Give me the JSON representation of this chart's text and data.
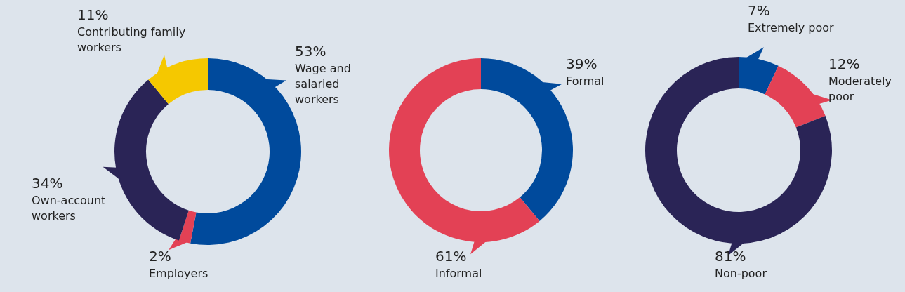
{
  "chart_data": [
    {
      "type": "donut",
      "categories": [
        "Wage and salaried workers",
        "Employers",
        "Own-account workers",
        "Contributing family workers"
      ],
      "values": [
        53,
        2,
        34,
        11
      ],
      "value_labels": [
        "53%",
        "2%",
        "34%",
        "11%"
      ],
      "colors": [
        "#004a9c",
        "#e34155",
        "#2a2456",
        "#f5c800"
      ]
    },
    {
      "type": "donut",
      "categories": [
        "Formal",
        "Informal"
      ],
      "values": [
        39,
        61
      ],
      "value_labels": [
        "39%",
        "61%"
      ],
      "colors": [
        "#004a9c",
        "#e34155"
      ]
    },
    {
      "type": "donut",
      "categories": [
        "Extremely poor",
        "Moderately poor",
        "Non-poor"
      ],
      "values": [
        7,
        12,
        81
      ],
      "value_labels": [
        "7%",
        "12%",
        "81%"
      ],
      "colors": [
        "#004a9c",
        "#e34155",
        "#2a2456"
      ]
    }
  ]
}
